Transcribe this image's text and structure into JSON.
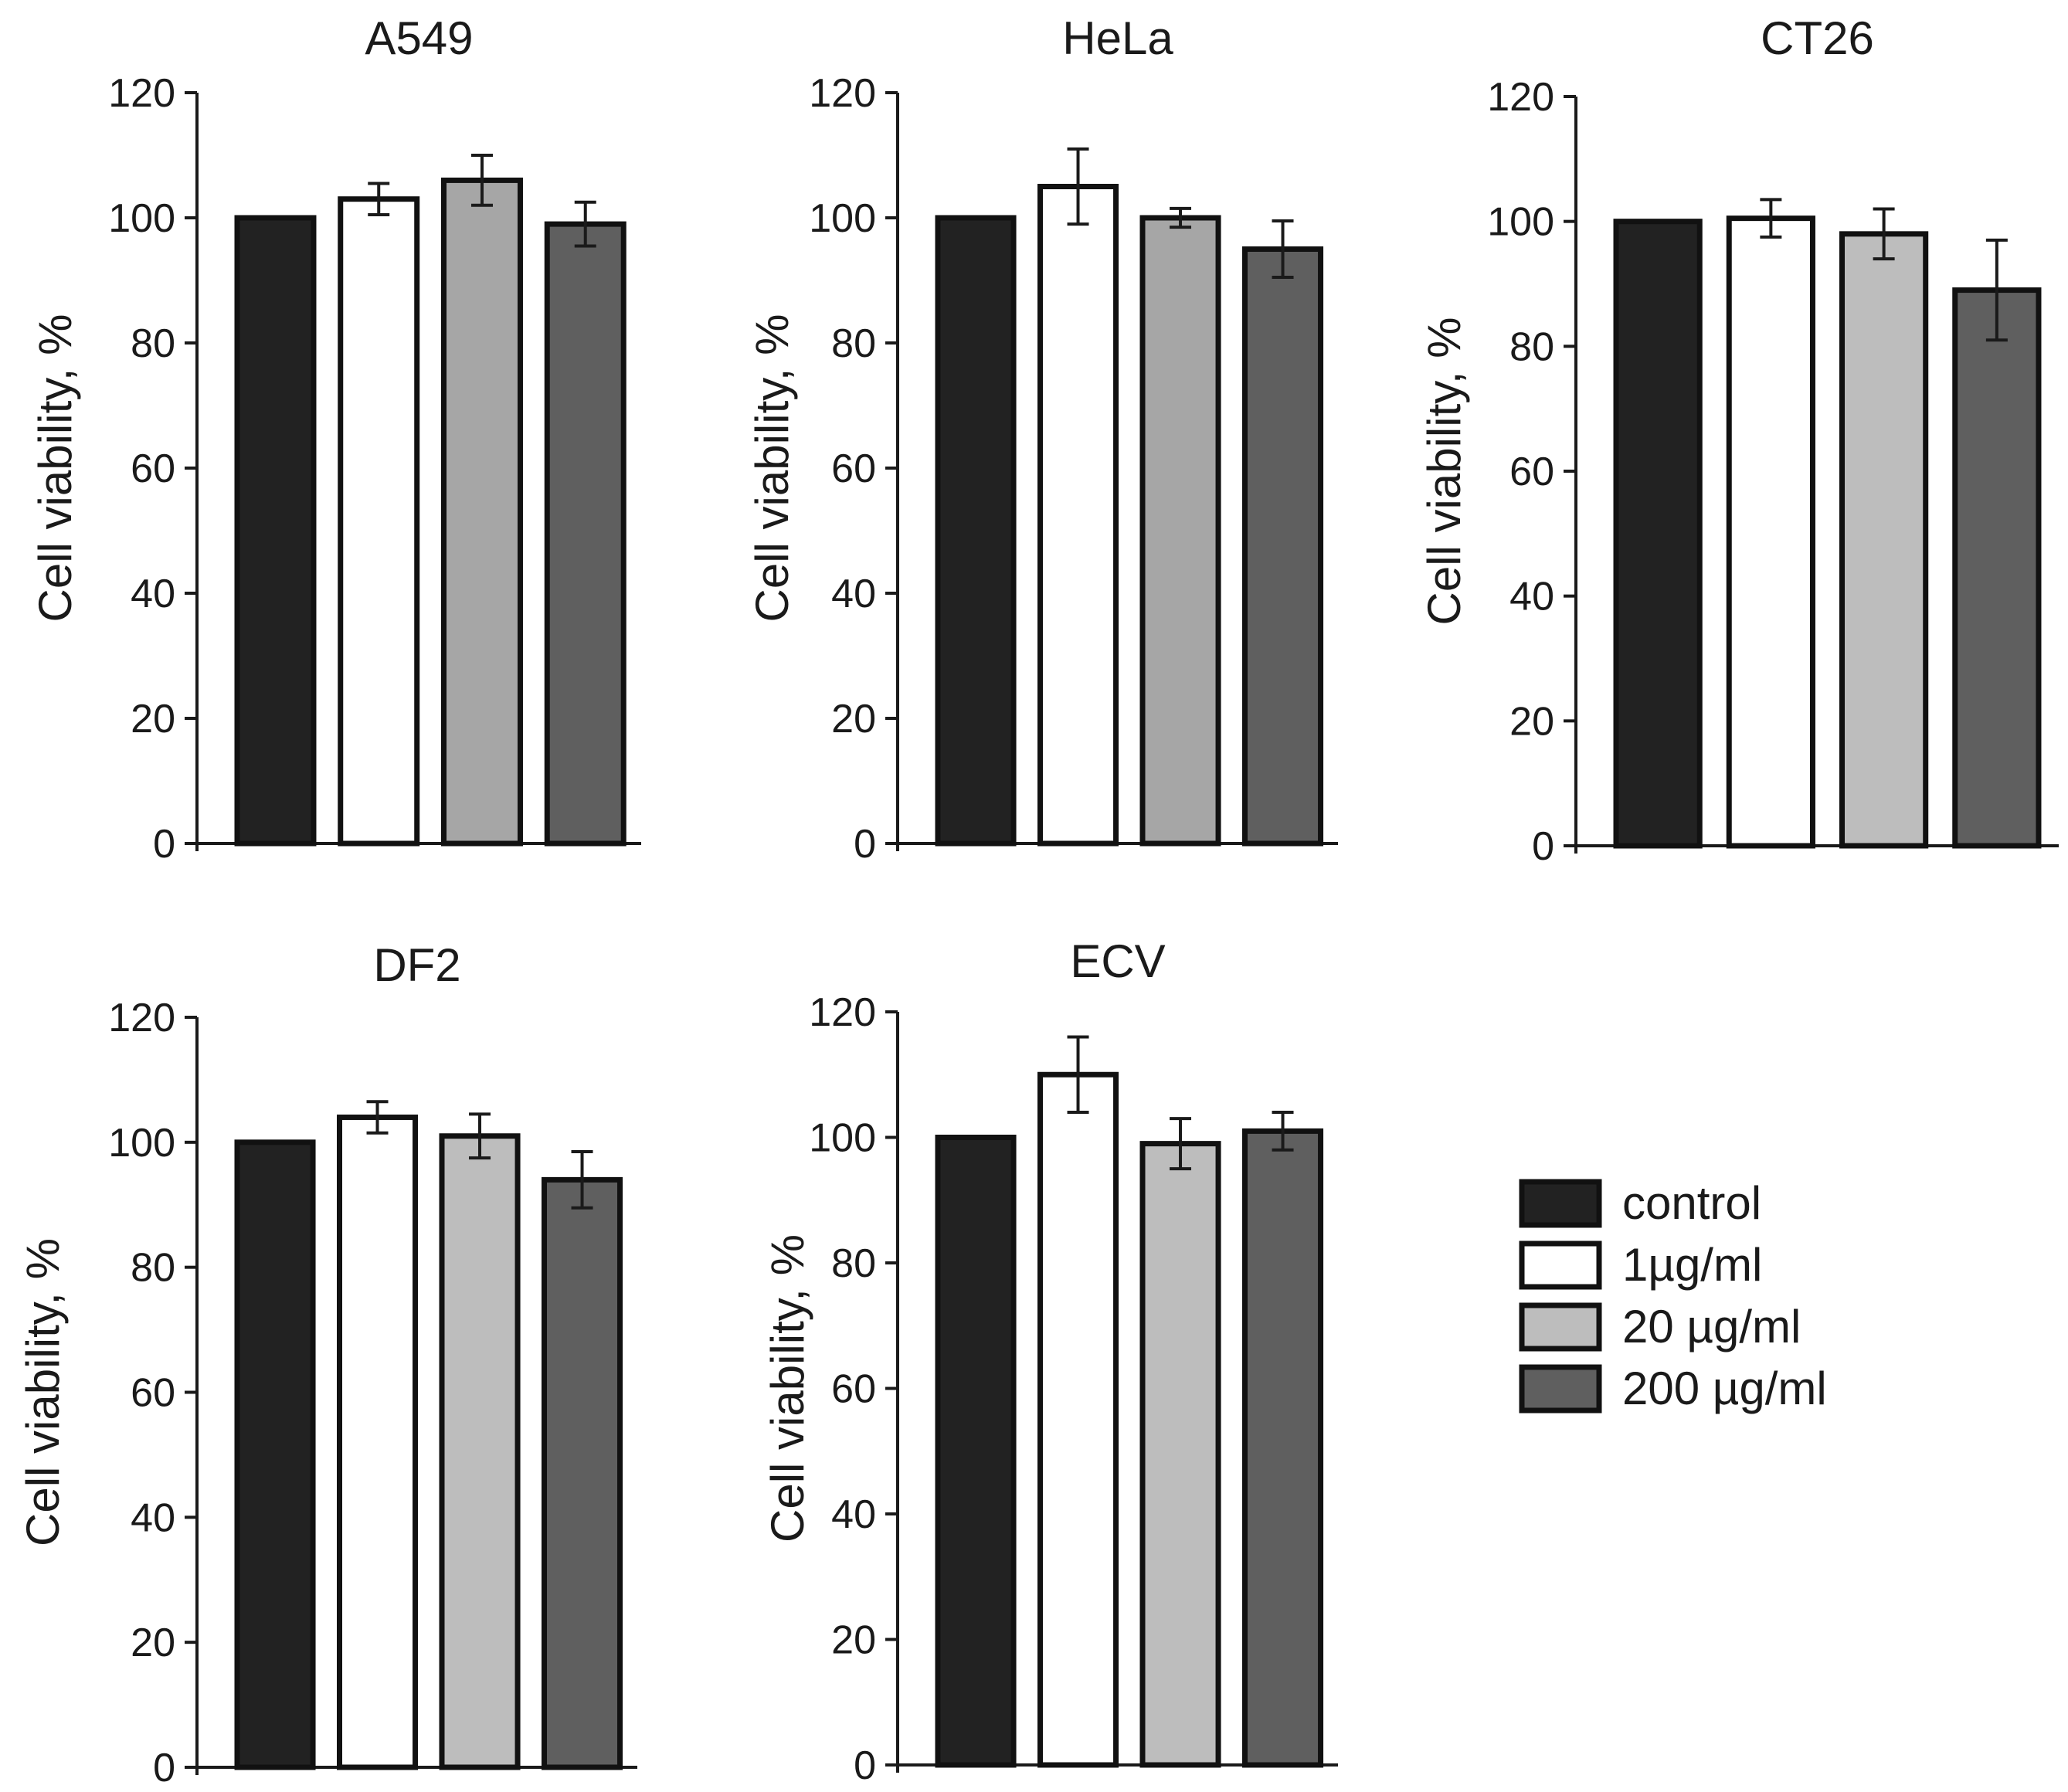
{
  "chart_data": [
    {
      "type": "bar",
      "title": "A549",
      "ylabel": "Cell viability, %",
      "xlabel": "",
      "ylim": [
        0,
        120
      ],
      "yticks": [
        0,
        20,
        40,
        60,
        80,
        100,
        120
      ],
      "categories": [
        "control",
        "1µg/ml",
        "20 µg/ml",
        "200 µg/ml"
      ],
      "values": [
        100,
        103,
        106,
        99
      ],
      "errors": [
        0,
        2.5,
        4,
        3.5
      ]
    },
    {
      "type": "bar",
      "title": "HeLa",
      "ylabel": "Cell viability, %",
      "xlabel": "",
      "ylim": [
        0,
        120
      ],
      "yticks": [
        0,
        20,
        40,
        60,
        80,
        100,
        120
      ],
      "categories": [
        "control",
        "1µg/ml",
        "20 µg/ml",
        "200 µg/ml"
      ],
      "values": [
        100,
        105,
        100,
        95
      ],
      "errors": [
        0,
        6,
        1.5,
        4.5
      ]
    },
    {
      "type": "bar",
      "title": "CT26",
      "ylabel": "Cell viability, %",
      "xlabel": "",
      "ylim": [
        0,
        120
      ],
      "yticks": [
        0,
        20,
        40,
        60,
        80,
        100,
        120
      ],
      "categories": [
        "control",
        "1µg/ml",
        "20 µg/ml",
        "200 µg/ml"
      ],
      "values": [
        100,
        100.5,
        98,
        89
      ],
      "errors": [
        0,
        3,
        4,
        8
      ]
    },
    {
      "type": "bar",
      "title": "DF2",
      "ylabel": "Cell viability, %",
      "xlabel": "",
      "ylim": [
        0,
        120
      ],
      "yticks": [
        0,
        20,
        40,
        60,
        80,
        100,
        120
      ],
      "categories": [
        "control",
        "1µg/ml",
        "20 µg/ml",
        "200 µg/ml"
      ],
      "values": [
        100,
        104,
        101,
        94
      ],
      "errors": [
        0,
        2.5,
        3.5,
        4.5
      ]
    },
    {
      "type": "bar",
      "title": "ECV",
      "ylabel": "Cell viability, %",
      "xlabel": "",
      "ylim": [
        0,
        120
      ],
      "yticks": [
        0,
        20,
        40,
        60,
        80,
        100,
        120
      ],
      "categories": [
        "control",
        "1µg/ml",
        "20 µg/ml",
        "200 µg/ml"
      ],
      "values": [
        100,
        110,
        99,
        101
      ],
      "errors": [
        0,
        6,
        4,
        3
      ]
    }
  ],
  "legend": {
    "placement": "bottom-right",
    "items": [
      {
        "label": "control",
        "color": "#222222"
      },
      {
        "label": "1µg/ml",
        "color": "#ffffff"
      },
      {
        "label": "20 µg/ml",
        "color": "#bdbdbd"
      },
      {
        "label": "200 µg/ml",
        "color": "#5f5f5f"
      }
    ]
  },
  "colors": {
    "axis": "#1a1a1a",
    "bar_outline": "#111111",
    "series": [
      "#222222",
      "#ffffff",
      "#bdbdbd",
      "#5f5f5f"
    ],
    "series_alt_20ug_A549_HeLa": "#a6a6a6"
  }
}
